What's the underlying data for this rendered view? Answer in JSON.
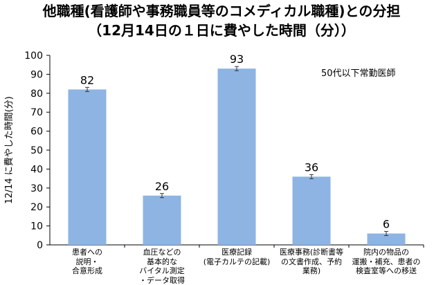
{
  "title_lines": [
    "他職種(看護師や事務職員等のコメディカル職種)との分担",
    "（12月14日の１日に費やした時間（分））"
  ],
  "chart_data": {
    "type": "bar",
    "title": "他職種(看護師や事務職員等のコメディカル職種)との分担（12月14日の１日に費やした時間（分））",
    "ylabel": "12/14 に費やした時間(分)",
    "xlabel": "",
    "ylim": [
      0,
      100
    ],
    "yticks": [
      0,
      10,
      20,
      30,
      40,
      50,
      60,
      70,
      80,
      90,
      100
    ],
    "grid": false,
    "error_bars": true,
    "annotation": "50代以下常勤医師",
    "bar_color": "#8eb4e3",
    "categories": [
      "患者への\n説明・\n合意形成",
      "血圧などの\n基本的な\nバイタル測定\n・データ取得",
      "医療記録\n(電子カルテの記載)",
      "医療事務(診断書等\nの文書作成、予約\n業務)",
      "院内の物品の\n運搬・補充、患者の\n検査室等への移送"
    ],
    "values": [
      82,
      26,
      93,
      36,
      6
    ],
    "value_labels": [
      "82",
      "26",
      "93",
      "36",
      "6"
    ]
  }
}
